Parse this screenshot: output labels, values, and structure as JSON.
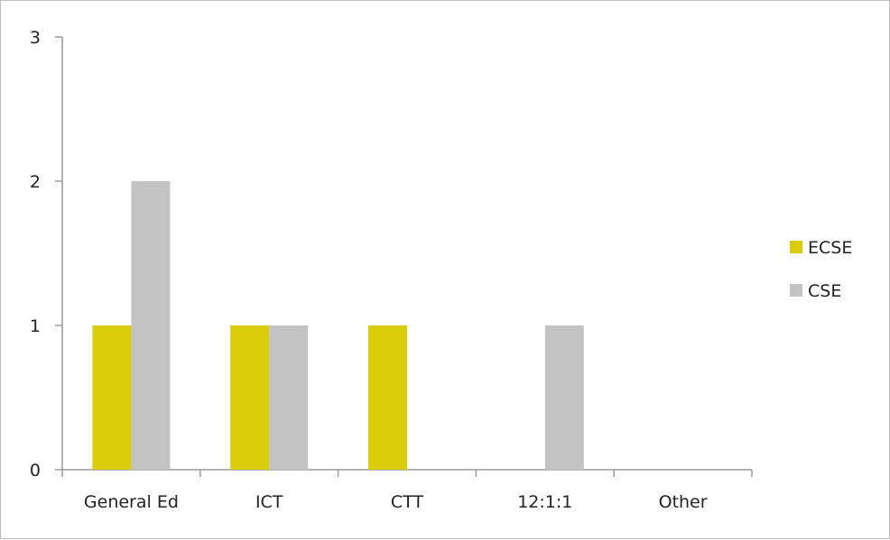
{
  "chart_data": {
    "type": "bar",
    "title": "",
    "xlabel": "",
    "ylabel": "",
    "categories": [
      "General Ed",
      "ICT",
      "CTT",
      "12:1:1",
      "Other"
    ],
    "series": [
      {
        "name": "ECSE",
        "values": [
          1,
          1,
          1,
          0,
          0
        ],
        "color": "#d9cc0a"
      },
      {
        "name": "CSE",
        "values": [
          2,
          1,
          0,
          1,
          0
        ],
        "color": "#c3c3c3"
      }
    ],
    "ylim": [
      0,
      3
    ],
    "yticks": [
      "0",
      "1",
      "2",
      "3"
    ],
    "grid": false,
    "legend_position": "right"
  }
}
